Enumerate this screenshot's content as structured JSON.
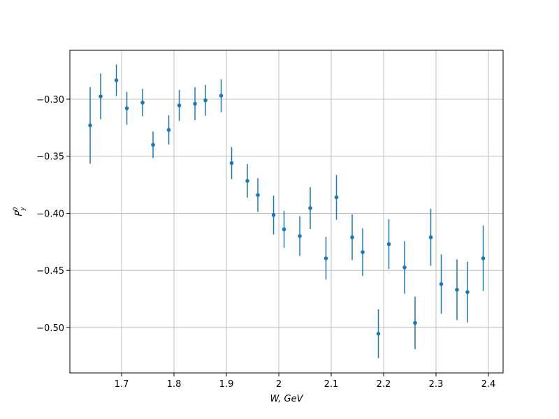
{
  "chart_data": {
    "type": "errorbar",
    "xlabel": "W, GeV",
    "ylabel": {
      "base": "P",
      "sub": "y",
      "sup": "0"
    },
    "xlim": [
      1.6013,
      2.428
    ],
    "ylim": [
      -0.5398,
      -0.2572
    ],
    "xticks": [
      1.7,
      1.8,
      1.9,
      2.0,
      2.1,
      2.2,
      2.3,
      2.4
    ],
    "yticks": [
      {
        "value": -0.3,
        "label": "−0.30"
      },
      {
        "value": -0.35,
        "label": "−0.35"
      },
      {
        "value": -0.4,
        "label": "−0.40"
      },
      {
        "value": -0.45,
        "label": "−0.45"
      },
      {
        "value": -0.5,
        "label": "−0.50"
      }
    ],
    "grid": true,
    "series": [
      {
        "color": "#1f77b4",
        "x": [
          1.64,
          1.66,
          1.69,
          1.71,
          1.74,
          1.76,
          1.79,
          1.81,
          1.84,
          1.86,
          1.89,
          1.91,
          1.94,
          1.96,
          1.99,
          2.01,
          2.04,
          2.06,
          2.09,
          2.11,
          2.14,
          2.16,
          2.19,
          2.21,
          2.24,
          2.26,
          2.29,
          2.31,
          2.34,
          2.36,
          2.39
        ],
        "values": [
          -0.323,
          -0.2976,
          -0.2835,
          -0.308,
          -0.303,
          -0.34,
          -0.327,
          -0.3055,
          -0.304,
          -0.301,
          -0.297,
          -0.356,
          -0.3716,
          -0.384,
          -0.4015,
          -0.414,
          -0.4199,
          -0.3954,
          -0.4394,
          -0.386,
          -0.421,
          -0.434,
          -0.5055,
          -0.427,
          -0.4474,
          -0.496,
          -0.421,
          -0.462,
          -0.467,
          -0.469,
          -0.4394
        ],
        "errors": [
          0.0336,
          0.02,
          0.0138,
          0.0144,
          0.012,
          0.0116,
          0.0128,
          0.0135,
          0.0144,
          0.0135,
          0.0144,
          0.014,
          0.0147,
          0.0147,
          0.017,
          0.0162,
          0.0174,
          0.0183,
          0.0187,
          0.0196,
          0.02,
          0.0208,
          0.0214,
          0.0217,
          0.023,
          0.023,
          0.025,
          0.026,
          0.0266,
          0.0266,
          0.0287
        ]
      }
    ]
  }
}
